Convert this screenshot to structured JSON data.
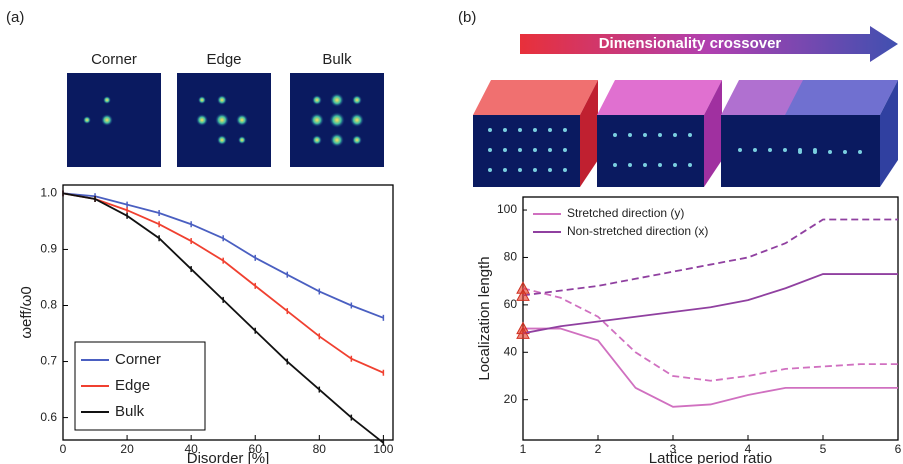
{
  "chart_data": [
    {
      "type": "line",
      "panel_label": "(a)",
      "image_labels": [
        "Corner",
        "Edge",
        "Bulk"
      ],
      "xlabel": "Disorder [%]",
      "ylabel": "ωeff/ω0",
      "x": [
        0,
        10,
        20,
        30,
        40,
        50,
        60,
        70,
        80,
        90,
        100
      ],
      "series": [
        {
          "name": "Corner",
          "color": "#4a5fc1",
          "values": [
            1.0,
            0.995,
            0.98,
            0.965,
            0.945,
            0.92,
            0.885,
            0.855,
            0.825,
            0.8,
            0.778
          ]
        },
        {
          "name": "Edge",
          "color": "#f04030",
          "values": [
            1.0,
            0.99,
            0.97,
            0.945,
            0.915,
            0.88,
            0.835,
            0.79,
            0.745,
            0.705,
            0.68
          ]
        },
        {
          "name": "Bulk",
          "color": "#111111",
          "values": [
            1.0,
            0.99,
            0.96,
            0.92,
            0.865,
            0.81,
            0.755,
            0.7,
            0.65,
            0.6,
            0.555
          ]
        }
      ],
      "xlim": [
        0,
        103
      ],
      "ylim": [
        0.56,
        1.015
      ],
      "xticks": [
        0,
        20,
        40,
        60,
        80,
        100
      ],
      "yticks": [
        {
          "value": 0.6,
          "label": "0.6"
        },
        {
          "value": 0.7,
          "label": "0.7"
        },
        {
          "value": 0.8,
          "label": "0.8"
        },
        {
          "value": 0.9,
          "label": "0.9"
        },
        {
          "value": 1.0,
          "label": "1.0"
        }
      ],
      "legend": "lower left"
    },
    {
      "type": "line",
      "panel_label": "(b)",
      "banner": "Dimensionality crossover",
      "xlabel": "Lattice period ratio",
      "ylabel": "Localization length",
      "x": [
        1,
        1.5,
        2,
        2.5,
        3,
        3.5,
        4,
        4.5,
        5,
        5.5,
        6
      ],
      "series": [
        {
          "name": "Stretched direction (y)",
          "color": "#d070c0",
          "dashed": false,
          "values": [
            50,
            50,
            45,
            25,
            17,
            18,
            22,
            25,
            25,
            25,
            25
          ]
        },
        {
          "color": "#d070c0",
          "dashed": true,
          "values": [
            67,
            63,
            55,
            40,
            30,
            28,
            30,
            33,
            34,
            35,
            35
          ]
        },
        {
          "name": "Non-stretched direction (x)",
          "color": "#9040a0",
          "dashed": false,
          "values": [
            48,
            51,
            53,
            55,
            57,
            59,
            62,
            67,
            73,
            73,
            73
          ]
        },
        {
          "color": "#9040a0",
          "dashed": true,
          "values": [
            64,
            66,
            68,
            71,
            74,
            77,
            80,
            86,
            96,
            96,
            96
          ]
        }
      ],
      "xlim": [
        1,
        6
      ],
      "ylim": [
        3,
        105.5
      ],
      "xticks": [
        1,
        2,
        3,
        4,
        5,
        6
      ],
      "yticks": [
        20,
        40,
        60,
        80,
        100
      ],
      "legend": "upper left"
    }
  ]
}
